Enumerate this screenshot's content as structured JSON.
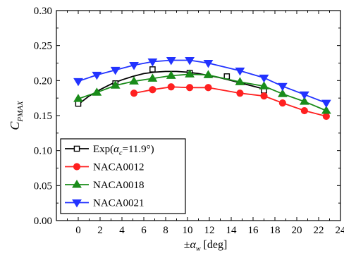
{
  "chart_data": {
    "type": "line",
    "xlabel": {
      "prefix": "±",
      "symbol": "α",
      "subscript": "w",
      "unit": " [deg]"
    },
    "ylabel": {
      "symbol": "C",
      "subscript": "PMAX"
    },
    "xlim": [
      -2,
      24
    ],
    "ylim": [
      0.0,
      0.3
    ],
    "xticks": [
      0,
      2,
      4,
      6,
      8,
      10,
      12,
      14,
      16,
      18,
      20,
      22,
      24
    ],
    "yticks": [
      0.0,
      0.05,
      0.1,
      0.15,
      0.2,
      0.25,
      0.3
    ],
    "ytick_labels": [
      "0.00",
      "0.05",
      "0.10",
      "0.15",
      "0.20",
      "0.25",
      "0.30"
    ],
    "grid": false,
    "legend_position": "bottom-left",
    "series": [
      {
        "name": "Exp(αc=11.9°)",
        "legend": {
          "prefix": "Exp(",
          "symbol": "α",
          "subscript": "c",
          "suffix": "=11.9°)"
        },
        "color": "#000000",
        "marker": "open-square",
        "marker_x": [
          0,
          3.4,
          6.8,
          10.2,
          13.6,
          17.0
        ],
        "marker_y": [
          0.167,
          0.196,
          0.216,
          0.211,
          0.206,
          0.186
        ],
        "curve_x": [
          0,
          1,
          2,
          3,
          4,
          5,
          6,
          7,
          8,
          9,
          10,
          11,
          12,
          13,
          14,
          15,
          16,
          17
        ],
        "curve_y": [
          0.166,
          0.178,
          0.187,
          0.195,
          0.201,
          0.206,
          0.21,
          0.212,
          0.213,
          0.213,
          0.212,
          0.21,
          0.207,
          0.204,
          0.2,
          0.196,
          0.192,
          0.188
        ]
      },
      {
        "name": "NACA0012",
        "color": "#ff2020",
        "marker": "circle",
        "x": [
          5.1,
          6.8,
          8.5,
          10.2,
          11.9,
          14.8,
          17.0,
          18.7,
          20.7,
          22.7
        ],
        "y": [
          0.182,
          0.187,
          0.191,
          0.19,
          0.19,
          0.182,
          0.178,
          0.168,
          0.157,
          0.149
        ]
      },
      {
        "name": "NACA0018",
        "color": "#1a8c1a",
        "marker": "triangle-up",
        "x": [
          0,
          1.7,
          3.4,
          5.1,
          6.8,
          8.5,
          10.2,
          11.9,
          14.8,
          17.0,
          18.7,
          20.7,
          22.7
        ],
        "y": [
          0.174,
          0.183,
          0.193,
          0.199,
          0.203,
          0.207,
          0.209,
          0.208,
          0.198,
          0.192,
          0.181,
          0.17,
          0.157
        ]
      },
      {
        "name": "NACA0021",
        "color": "#2233ff",
        "marker": "triangle-down",
        "x": [
          0,
          1.7,
          3.4,
          5.1,
          6.8,
          8.5,
          10.2,
          11.9,
          14.8,
          17.0,
          18.7,
          20.7,
          22.7
        ],
        "y": [
          0.199,
          0.208,
          0.215,
          0.222,
          0.227,
          0.229,
          0.229,
          0.225,
          0.214,
          0.204,
          0.192,
          0.18,
          0.168
        ]
      }
    ]
  }
}
